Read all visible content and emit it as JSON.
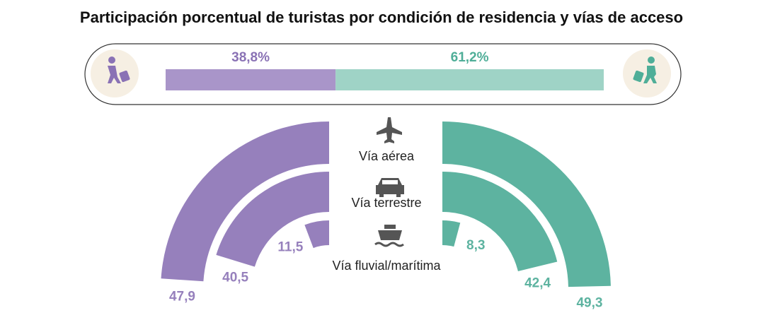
{
  "title": "Participación porcentual de turistas por condición de residencia y vías de acceso",
  "split": {
    "values": [
      38.8,
      61.2
    ],
    "value_labels": [
      "38,8%",
      "61,2%"
    ],
    "colors": [
      "#a995c9",
      "#9fd3c6"
    ],
    "label_colors": [
      "#8a72b5",
      "#4fae98"
    ]
  },
  "modes": [
    "Vía aérea",
    "Vía terrestre",
    "Vía fluvial/marítima"
  ],
  "groups": [
    {
      "color": "#9680bc",
      "values": [
        47.9,
        40.5,
        11.5
      ],
      "value_labels": [
        "47,9",
        "40,5",
        "11,5"
      ]
    },
    {
      "color": "#5db3a0",
      "values": [
        49.3,
        42.4,
        8.3
      ],
      "value_labels": [
        "49,3",
        "42,4",
        "8,3"
      ]
    }
  ]
}
